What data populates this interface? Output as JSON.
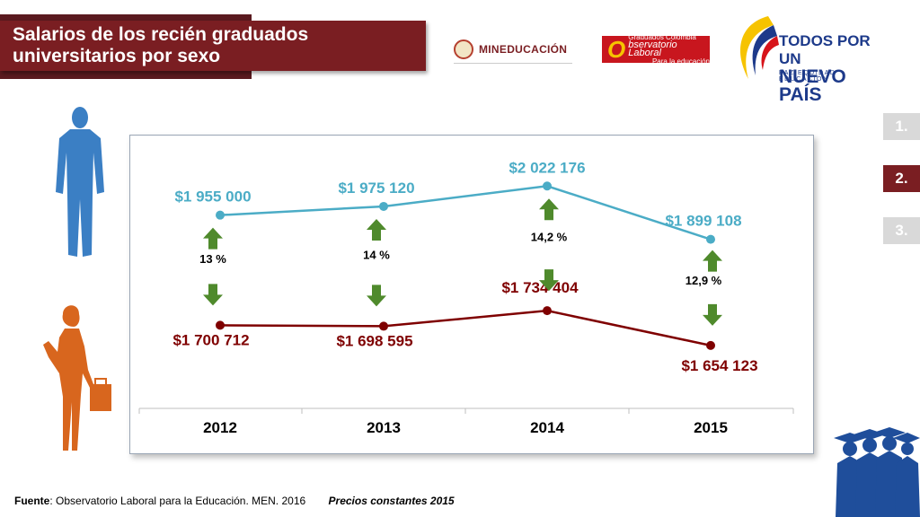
{
  "header": {
    "title_line1": "Salarios de los recién graduados",
    "title_line2": "universitarios por sexo"
  },
  "logos": {
    "men": "MINEDUCACIÓN",
    "obs_big": "O",
    "obs_top": "Graduados Colombia",
    "obs_main": "bservatorio Laboral",
    "obs_bottom": "Para la educación",
    "todos_line1": "TODOS POR UN",
    "todos_line2": "NUEVO PAÍS",
    "todos_sub": "PAZ   EQUIDAD   EDUCACIÓN"
  },
  "side_nav": [
    {
      "label": "1.",
      "color": "#d9d9d9"
    },
    {
      "label": "2.",
      "color": "#7a1e22"
    },
    {
      "label": "3.",
      "color": "#d9d9d9"
    }
  ],
  "footer": {
    "source_label": "Fuente",
    "source_text": ": Observatorio Laboral para la Educación. MEN. 2016",
    "prices": "Precios constantes  2015"
  },
  "chart_data": {
    "type": "line",
    "categories": [
      "2012",
      "2013",
      "2014",
      "2015"
    ],
    "series": [
      {
        "values": [
          1955000,
          1975120,
          2022176,
          1899108
        ],
        "labels": [
          "$1 955 000",
          "$1 975 120",
          "$2 022 176",
          "$1 899 108"
        ],
        "color": "#4bacc6"
      },
      {
        "values": [
          1700712,
          1698595,
          1734404,
          1654123
        ],
        "labels": [
          "$1 700 712",
          "$1 698 595",
          "$1 734 404",
          "$1 654 123"
        ],
        "color": "#7f0000"
      }
    ],
    "gap_labels": [
      "13 %",
      "14 %",
      "14,2 %",
      "12,9 %"
    ],
    "ylim": [
      1600000,
      2060000
    ],
    "arrow_color": "#4f8a2c",
    "grid": false
  }
}
